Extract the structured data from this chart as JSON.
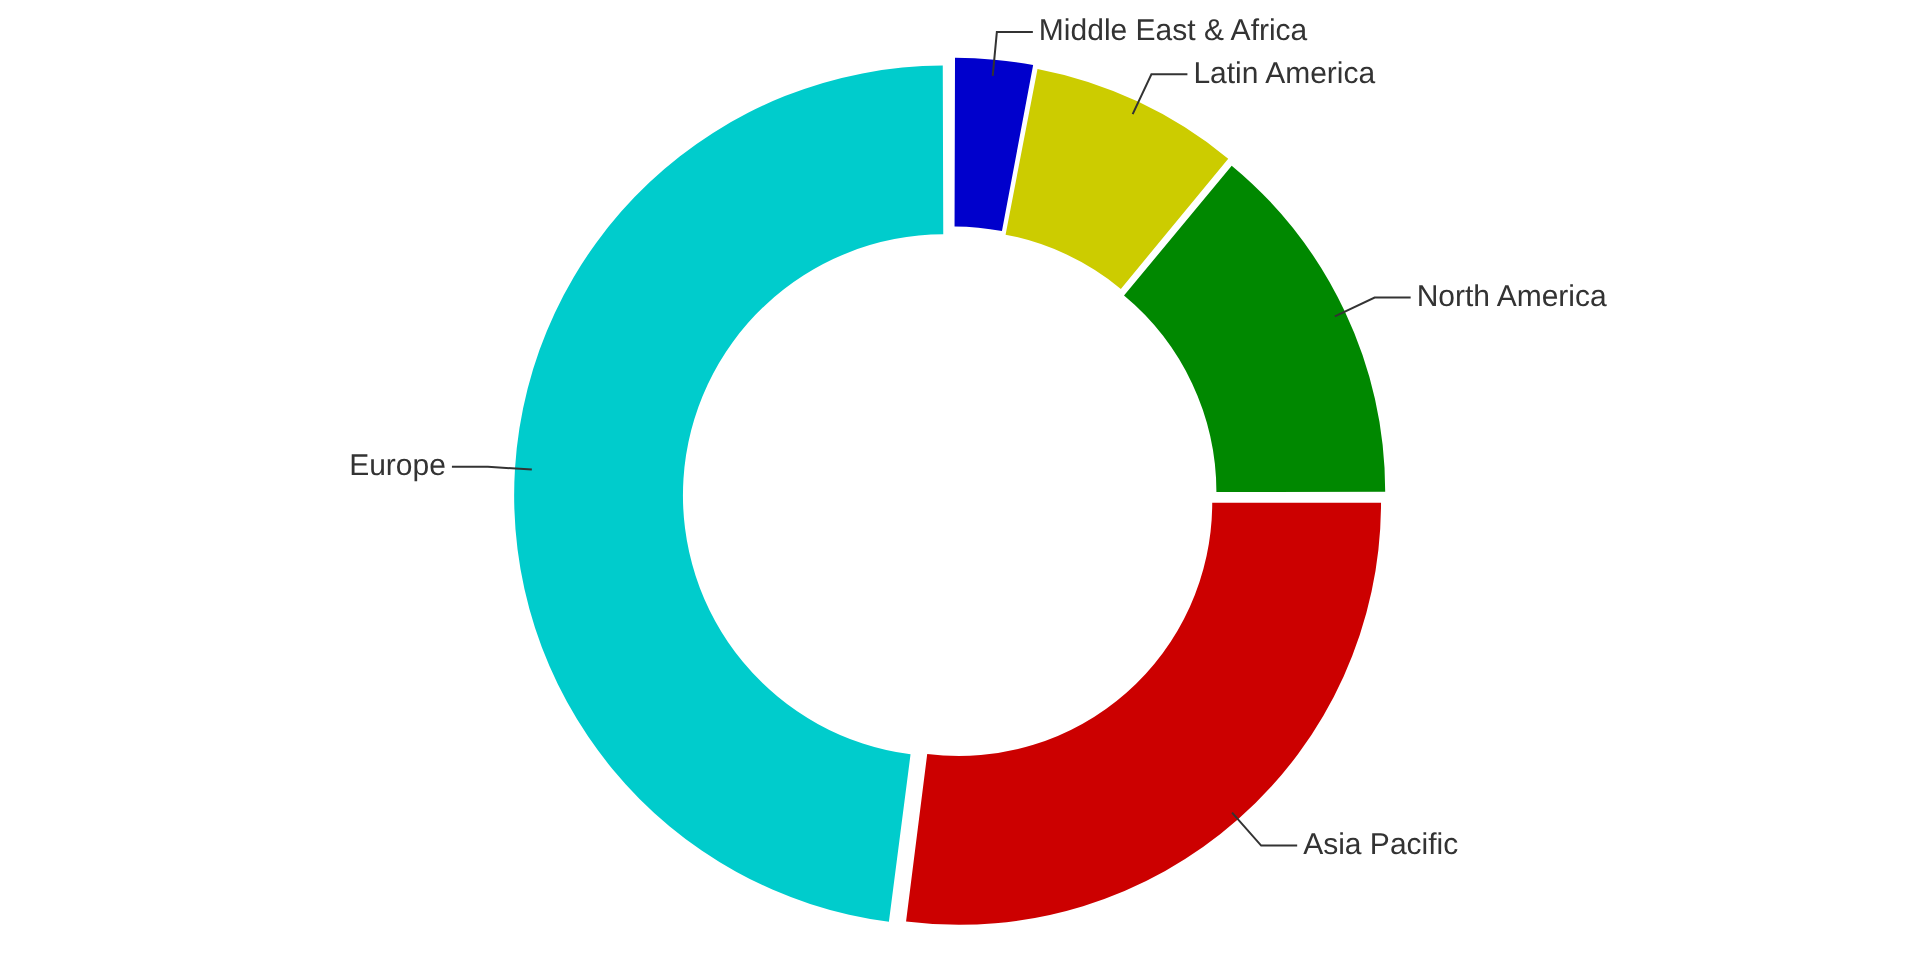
{
  "chart_data": {
    "type": "donut",
    "categories": [
      "Middle East & Africa",
      "Latin America",
      "North America",
      "Asia Pacific",
      "Europe"
    ],
    "values": [
      3,
      8,
      14,
      27,
      48
    ],
    "colors": [
      "#0000cc",
      "#cccc00",
      "#008800",
      "#cc0000",
      "#00cccc"
    ],
    "legend": false
  }
}
